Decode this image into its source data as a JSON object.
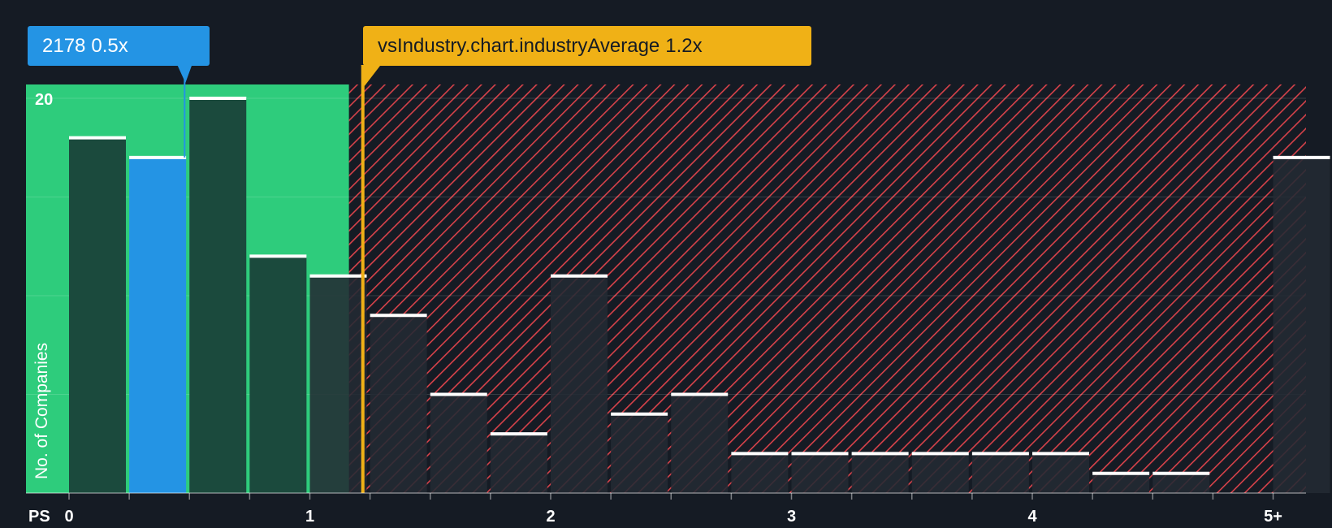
{
  "chart_data": {
    "type": "bar",
    "x_axis_label": "PS",
    "y_axis_label": "No. of Companies",
    "x_tick_labels": [
      "0",
      "1",
      "2",
      "3",
      "4",
      "5+"
    ],
    "y_tick_labels": [
      "20"
    ],
    "ylim": [
      0,
      20.7
    ],
    "bins": [
      0.0,
      0.25,
      0.5,
      0.75,
      1.0,
      1.25,
      1.5,
      1.75,
      2.0,
      2.25,
      2.5,
      2.75,
      3.0,
      3.25,
      3.5,
      3.75,
      4.0,
      4.25,
      4.5,
      4.75,
      5.0
    ],
    "values": [
      18,
      17,
      20,
      12,
      11,
      9,
      5,
      3,
      11,
      4,
      5,
      2,
      2,
      2,
      2,
      2,
      2,
      1,
      1,
      0,
      17
    ],
    "company": {
      "ticker": "2178",
      "value_label": "0.5x",
      "value": 0.48,
      "highlight_bin": 1,
      "color": "#2494e4"
    },
    "industry": {
      "label": "vsIndustry.chart.industryAverage",
      "value_label": "1.2x",
      "value": 1.22,
      "color": "#f0b116"
    },
    "colors": {
      "background": "#151b24",
      "left_region": "#2ecc7c",
      "left_bar": "#1b4a3d",
      "right_region_stripe": "#d7424a",
      "right_bar": "#232a33",
      "cap": "#ffffff"
    }
  }
}
